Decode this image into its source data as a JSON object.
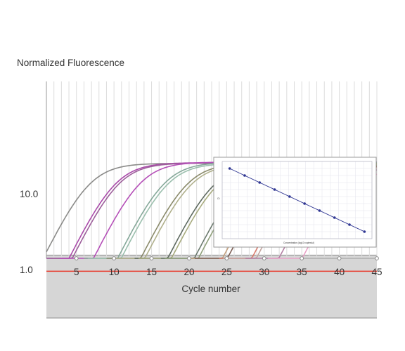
{
  "chart_data": [
    {
      "type": "line",
      "ylabel": "Normalized Fluorescence",
      "xlabel": "Cycle number",
      "yscale": "log",
      "xlim": [
        1,
        45
      ],
      "ylim": [
        0.2,
        30
      ],
      "grid": {
        "x": true,
        "y": false
      },
      "x_ticks": [
        "5",
        "10",
        "15",
        "20",
        "25",
        "30",
        "35",
        "40",
        "45"
      ],
      "y_ticks": [
        "10.0",
        "1.0"
      ],
      "threshold": {
        "value": 0.95,
        "color": "#e8382a"
      },
      "baseline_band": {
        "range": [
          0.23,
          1.55
        ],
        "color": "#d6d6d6"
      },
      "series": [
        {
          "color": "#8a8a88",
          "midpoint": 6.5,
          "plateau": 25
        },
        {
          "color": "#aa4aaa",
          "midpoint": 10.0,
          "plateau": 25.5
        },
        {
          "color": "#9d5f9b",
          "midpoint": 10.4,
          "plateau": 25.2
        },
        {
          "color": "#b54fb8",
          "midpoint": 13.3,
          "plateau": 26
        },
        {
          "color": "#85a899",
          "midpoint": 16.5,
          "plateau": 25.8
        },
        {
          "color": "#9bbfad",
          "midpoint": 16.9,
          "plateau": 25
        },
        {
          "color": "#8a8a6a",
          "midpoint": 19.5,
          "plateau": 25
        },
        {
          "color": "#b0b08c",
          "midpoint": 20.0,
          "plateau": 24.5
        },
        {
          "color": "#5e6a60",
          "midpoint": 23.0,
          "plateau": 24
        },
        {
          "color": "#a7ab7e",
          "midpoint": 23.5,
          "plateau": 24
        },
        {
          "color": "#6b7a6e",
          "midpoint": 26.5,
          "plateau": 23.5
        },
        {
          "color": "#8fa07b",
          "midpoint": 27.0,
          "plateau": 23
        },
        {
          "color": "#c4a07e",
          "midpoint": 30.2,
          "plateau": 23
        },
        {
          "color": "#7c5f55",
          "midpoint": 30.8,
          "plateau": 22.5
        },
        {
          "color": "#d97c6e",
          "midpoint": 34.0,
          "plateau": 22
        },
        {
          "color": "#c3a6a1",
          "midpoint": 34.6,
          "plateau": 22
        },
        {
          "color": "#b27fa3",
          "midpoint": 37.5,
          "plateau": 21
        },
        {
          "color": "#e9a3c8",
          "midpoint": 40.5,
          "plateau": 20
        }
      ]
    },
    {
      "type": "scatter",
      "inset": true,
      "xlabel": "Concentration (log10 copies/ul)",
      "ylabel": "Ct",
      "grid": true,
      "trendline": true,
      "color": "#2e3592",
      "x": [
        1,
        2,
        3,
        4,
        5,
        6,
        7,
        8,
        9,
        10
      ],
      "y": [
        38,
        35,
        32,
        29,
        26,
        23,
        20,
        17,
        14,
        11
      ]
    }
  ]
}
